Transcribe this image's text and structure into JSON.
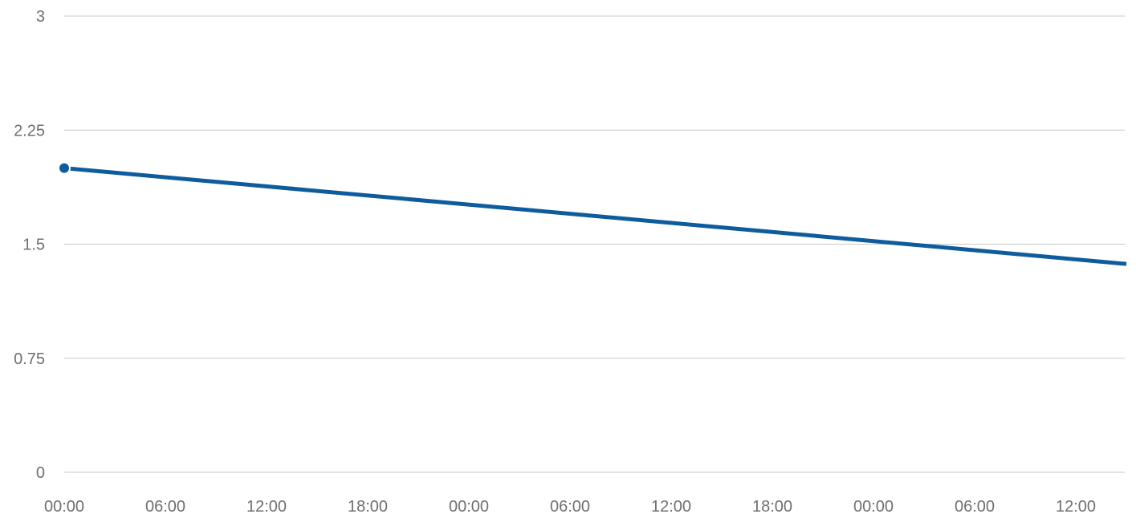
{
  "chart_data": {
    "type": "line",
    "title": "",
    "xlabel": "",
    "ylabel": "",
    "ylim": [
      0,
      3
    ],
    "y_ticks": [
      "0",
      "0.75",
      "1.5",
      "2.25",
      "3"
    ],
    "x_ticks": [
      "00:00",
      "06:00",
      "12:00",
      "18:00",
      "00:00",
      "06:00",
      "12:00",
      "18:00",
      "00:00",
      "06:00",
      "12:00"
    ],
    "grid": true,
    "legend": "none",
    "series": [
      {
        "color": "#0e5c9e",
        "points": [
          {
            "hour": 0,
            "value": 2.0
          },
          {
            "hour": 63,
            "value": 1.37
          }
        ]
      }
    ]
  }
}
